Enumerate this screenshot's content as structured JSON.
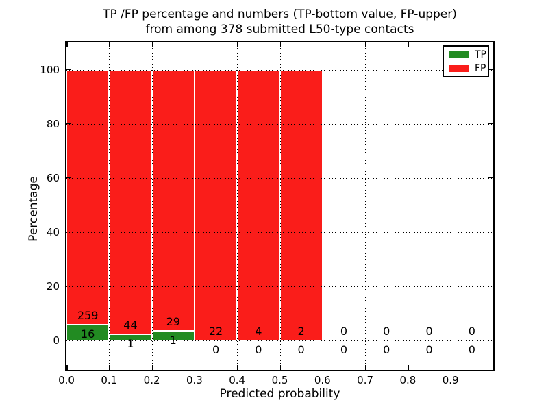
{
  "figure": {
    "background": "#ffffff"
  },
  "chart_data": {
    "type": "bar",
    "stacked": true,
    "title": "TP /FP percentage and numbers (TP-bottom value, FP-upper) from among 378 submitted L50-type contacts",
    "title_line1": "TP /FP percentage and numbers (TP-bottom value, FP-upper)",
    "title_line2": "from among 378 submitted L50-type contacts",
    "xlabel": "Predicted probability",
    "ylabel": "Percentage",
    "xlim": [
      0.0,
      1.0
    ],
    "ylim": [
      -11,
      110
    ],
    "bin_width": 0.1,
    "x_tick_labels": [
      "0.0",
      "0.1",
      "0.2",
      "0.3",
      "0.4",
      "0.5",
      "0.6",
      "0.7",
      "0.8",
      "0.9"
    ],
    "y_tick_values": [
      0,
      20,
      40,
      60,
      80,
      100
    ],
    "grid": "dotted-black, horizontal and vertical, drawn over bars",
    "categories": [
      "0.0-0.1",
      "0.1-0.2",
      "0.2-0.3",
      "0.3-0.4",
      "0.4-0.5",
      "0.5-0.6",
      "0.6-0.7",
      "0.7-0.8",
      "0.8-0.9",
      "0.9-1.0"
    ],
    "series": [
      {
        "name": "TP",
        "color": "#228b22",
        "counts": [
          16,
          1,
          1,
          0,
          0,
          0,
          0,
          0,
          0,
          0
        ]
      },
      {
        "name": "FP",
        "color": "#fa1d1a",
        "counts": [
          259,
          44,
          29,
          22,
          4,
          2,
          0,
          0,
          0,
          0
        ]
      }
    ],
    "total_contacts": 378,
    "bars_normalized_to_percent": 100,
    "annotation_note_visible_values": {
      "fp_labels": [
        "259",
        "44",
        "29",
        "22",
        "4",
        "2",
        "0",
        "0",
        "0",
        "0"
      ],
      "tp_labels": [
        "16",
        "1",
        "1",
        "0",
        "0",
        "0",
        "0",
        "0",
        "0",
        "0"
      ]
    },
    "legend": {
      "position": "upper right",
      "entries": [
        {
          "label": "TP",
          "color": "#228b22"
        },
        {
          "label": "FP",
          "color": "#fa1d1a"
        }
      ]
    },
    "axis_color": "#000000",
    "text_color": "#000000"
  }
}
